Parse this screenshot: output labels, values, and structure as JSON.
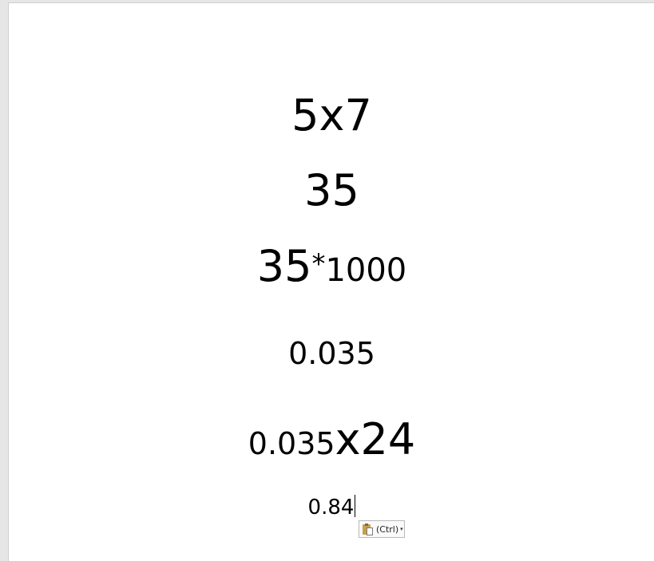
{
  "document": {
    "lines": [
      {
        "text": "5x7"
      },
      {
        "text": "35"
      },
      {
        "parts": [
          "35",
          "*",
          "1000"
        ]
      },
      {
        "text": "0.035"
      },
      {
        "parts": [
          "0.035",
          "x24"
        ]
      },
      {
        "text": "0.84"
      }
    ]
  },
  "paste_options": {
    "label": "(Ctrl)",
    "icon": "clipboard-icon",
    "arrow": "▾"
  }
}
